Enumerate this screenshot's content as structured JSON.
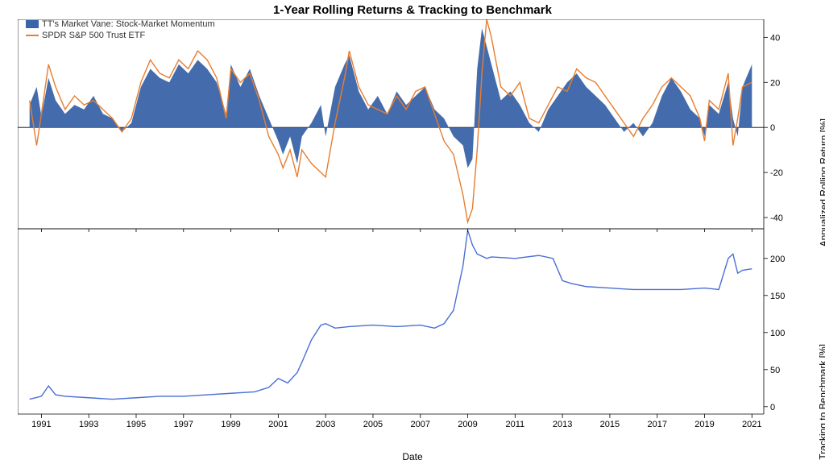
{
  "title": "1-Year Rolling Returns & Tracking to Benchmark",
  "xlabel": "Date",
  "ylabel_top": "Annualized Rolling Return [%]",
  "ylabel_bottom": "Tracking to Benchmark [%]",
  "legend": {
    "area_label": "TT's Market Vane: Stock-Market Momentum",
    "line_label": "SPDR S&P 500 Trust ETF"
  },
  "x_axis": {
    "min": 1990,
    "max": 2021.5,
    "ticks": [
      1991,
      1993,
      1995,
      1997,
      1999,
      2001,
      2003,
      2005,
      2007,
      2009,
      2011,
      2013,
      2015,
      2017,
      2019,
      2021
    ]
  },
  "top_panel": {
    "ylim": [
      -45,
      48
    ],
    "yticks": [
      -40,
      -20,
      0,
      20,
      40
    ],
    "zero_line_color": "#000000",
    "area_color": "#3a64a8",
    "line_color": "#e87d2e",
    "area_data": [
      [
        1990.5,
        10
      ],
      [
        1990.8,
        18
      ],
      [
        1991.0,
        5
      ],
      [
        1991.3,
        22
      ],
      [
        1991.6,
        12
      ],
      [
        1992.0,
        6
      ],
      [
        1992.4,
        10
      ],
      [
        1992.8,
        8
      ],
      [
        1993.2,
        14
      ],
      [
        1993.6,
        6
      ],
      [
        1994.0,
        4
      ],
      [
        1994.4,
        -2
      ],
      [
        1994.8,
        2
      ],
      [
        1995.2,
        18
      ],
      [
        1995.6,
        26
      ],
      [
        1996.0,
        22
      ],
      [
        1996.4,
        20
      ],
      [
        1996.8,
        28
      ],
      [
        1997.2,
        24
      ],
      [
        1997.6,
        30
      ],
      [
        1998.0,
        26
      ],
      [
        1998.4,
        20
      ],
      [
        1998.8,
        6
      ],
      [
        1999.0,
        28
      ],
      [
        1999.4,
        18
      ],
      [
        1999.8,
        26
      ],
      [
        2000.2,
        14
      ],
      [
        2000.6,
        4
      ],
      [
        2001.0,
        -6
      ],
      [
        2001.2,
        -12
      ],
      [
        2001.5,
        -4
      ],
      [
        2001.8,
        -16
      ],
      [
        2002.0,
        -4
      ],
      [
        2002.4,
        2
      ],
      [
        2002.8,
        10
      ],
      [
        2003.0,
        -4
      ],
      [
        2003.4,
        18
      ],
      [
        2003.8,
        28
      ],
      [
        2004.0,
        32
      ],
      [
        2004.4,
        16
      ],
      [
        2004.8,
        8
      ],
      [
        2005.2,
        14
      ],
      [
        2005.6,
        6
      ],
      [
        2006.0,
        16
      ],
      [
        2006.4,
        10
      ],
      [
        2006.8,
        14
      ],
      [
        2007.2,
        18
      ],
      [
        2007.6,
        8
      ],
      [
        2008.0,
        4
      ],
      [
        2008.4,
        -4
      ],
      [
        2008.8,
        -8
      ],
      [
        2009.0,
        -18
      ],
      [
        2009.2,
        -14
      ],
      [
        2009.4,
        26
      ],
      [
        2009.6,
        44
      ],
      [
        2009.8,
        36
      ],
      [
        2010.0,
        28
      ],
      [
        2010.4,
        12
      ],
      [
        2010.8,
        16
      ],
      [
        2011.2,
        10
      ],
      [
        2011.6,
        2
      ],
      [
        2012.0,
        -2
      ],
      [
        2012.4,
        8
      ],
      [
        2012.8,
        14
      ],
      [
        2013.2,
        20
      ],
      [
        2013.6,
        24
      ],
      [
        2014.0,
        18
      ],
      [
        2014.4,
        14
      ],
      [
        2014.8,
        10
      ],
      [
        2015.2,
        4
      ],
      [
        2015.6,
        -2
      ],
      [
        2016.0,
        2
      ],
      [
        2016.4,
        -4
      ],
      [
        2016.8,
        2
      ],
      [
        2017.2,
        14
      ],
      [
        2017.6,
        22
      ],
      [
        2018.0,
        16
      ],
      [
        2018.4,
        8
      ],
      [
        2018.8,
        4
      ],
      [
        2019.0,
        -4
      ],
      [
        2019.2,
        10
      ],
      [
        2019.6,
        6
      ],
      [
        2020.0,
        20
      ],
      [
        2020.2,
        4
      ],
      [
        2020.4,
        -4
      ],
      [
        2020.6,
        18
      ],
      [
        2021.0,
        28
      ]
    ],
    "line_data": [
      [
        1990.5,
        12
      ],
      [
        1990.8,
        -8
      ],
      [
        1991.0,
        6
      ],
      [
        1991.3,
        28
      ],
      [
        1991.6,
        18
      ],
      [
        1992.0,
        8
      ],
      [
        1992.4,
        14
      ],
      [
        1992.8,
        10
      ],
      [
        1993.2,
        12
      ],
      [
        1993.6,
        8
      ],
      [
        1994.0,
        4
      ],
      [
        1994.4,
        -2
      ],
      [
        1994.8,
        4
      ],
      [
        1995.2,
        20
      ],
      [
        1995.6,
        30
      ],
      [
        1996.0,
        24
      ],
      [
        1996.4,
        22
      ],
      [
        1996.8,
        30
      ],
      [
        1997.2,
        26
      ],
      [
        1997.6,
        34
      ],
      [
        1998.0,
        30
      ],
      [
        1998.4,
        22
      ],
      [
        1998.8,
        4
      ],
      [
        1999.0,
        26
      ],
      [
        1999.4,
        20
      ],
      [
        1999.8,
        24
      ],
      [
        2000.2,
        12
      ],
      [
        2000.6,
        -4
      ],
      [
        2001.0,
        -12
      ],
      [
        2001.2,
        -18
      ],
      [
        2001.5,
        -10
      ],
      [
        2001.8,
        -22
      ],
      [
        2002.0,
        -10
      ],
      [
        2002.4,
        -16
      ],
      [
        2002.8,
        -20
      ],
      [
        2003.0,
        -22
      ],
      [
        2003.4,
        2
      ],
      [
        2003.8,
        22
      ],
      [
        2004.0,
        34
      ],
      [
        2004.4,
        18
      ],
      [
        2004.8,
        10
      ],
      [
        2005.2,
        8
      ],
      [
        2005.6,
        6
      ],
      [
        2006.0,
        14
      ],
      [
        2006.4,
        8
      ],
      [
        2006.8,
        16
      ],
      [
        2007.2,
        18
      ],
      [
        2007.6,
        6
      ],
      [
        2008.0,
        -6
      ],
      [
        2008.4,
        -12
      ],
      [
        2008.8,
        -30
      ],
      [
        2009.0,
        -42
      ],
      [
        2009.2,
        -36
      ],
      [
        2009.4,
        -10
      ],
      [
        2009.6,
        24
      ],
      [
        2009.8,
        48
      ],
      [
        2010.0,
        40
      ],
      [
        2010.4,
        18
      ],
      [
        2010.8,
        14
      ],
      [
        2011.2,
        20
      ],
      [
        2011.6,
        4
      ],
      [
        2012.0,
        2
      ],
      [
        2012.4,
        10
      ],
      [
        2012.8,
        18
      ],
      [
        2013.2,
        16
      ],
      [
        2013.6,
        26
      ],
      [
        2014.0,
        22
      ],
      [
        2014.4,
        20
      ],
      [
        2014.8,
        14
      ],
      [
        2015.2,
        8
      ],
      [
        2015.6,
        2
      ],
      [
        2016.0,
        -4
      ],
      [
        2016.4,
        4
      ],
      [
        2016.8,
        10
      ],
      [
        2017.2,
        18
      ],
      [
        2017.6,
        22
      ],
      [
        2018.0,
        18
      ],
      [
        2018.4,
        14
      ],
      [
        2018.8,
        4
      ],
      [
        2019.0,
        -6
      ],
      [
        2019.2,
        12
      ],
      [
        2019.6,
        8
      ],
      [
        2020.0,
        24
      ],
      [
        2020.2,
        -8
      ],
      [
        2020.4,
        4
      ],
      [
        2020.6,
        18
      ],
      [
        2021.0,
        20
      ]
    ]
  },
  "bottom_panel": {
    "ylim": [
      -10,
      240
    ],
    "yticks": [
      0,
      50,
      100,
      150,
      200
    ],
    "line_color": "#4a6fd4",
    "data": [
      [
        1990.5,
        10
      ],
      [
        1991.0,
        14
      ],
      [
        1991.3,
        28
      ],
      [
        1991.6,
        16
      ],
      [
        1992.0,
        14
      ],
      [
        1993.0,
        12
      ],
      [
        1994.0,
        10
      ],
      [
        1995.0,
        12
      ],
      [
        1996.0,
        14
      ],
      [
        1997.0,
        14
      ],
      [
        1998.0,
        16
      ],
      [
        1999.0,
        18
      ],
      [
        2000.0,
        20
      ],
      [
        2000.6,
        26
      ],
      [
        2001.0,
        38
      ],
      [
        2001.4,
        32
      ],
      [
        2001.8,
        46
      ],
      [
        2002.0,
        60
      ],
      [
        2002.4,
        90
      ],
      [
        2002.8,
        110
      ],
      [
        2003.0,
        112
      ],
      [
        2003.4,
        106
      ],
      [
        2004.0,
        108
      ],
      [
        2005.0,
        110
      ],
      [
        2006.0,
        108
      ],
      [
        2007.0,
        110
      ],
      [
        2007.6,
        106
      ],
      [
        2008.0,
        112
      ],
      [
        2008.4,
        130
      ],
      [
        2008.8,
        190
      ],
      [
        2009.0,
        238
      ],
      [
        2009.2,
        218
      ],
      [
        2009.4,
        206
      ],
      [
        2009.8,
        200
      ],
      [
        2010.0,
        202
      ],
      [
        2011.0,
        200
      ],
      [
        2012.0,
        204
      ],
      [
        2012.6,
        200
      ],
      [
        2013.0,
        170
      ],
      [
        2013.4,
        166
      ],
      [
        2014.0,
        162
      ],
      [
        2015.0,
        160
      ],
      [
        2016.0,
        158
      ],
      [
        2017.0,
        158
      ],
      [
        2018.0,
        158
      ],
      [
        2019.0,
        160
      ],
      [
        2019.6,
        158
      ],
      [
        2020.0,
        200
      ],
      [
        2020.2,
        206
      ],
      [
        2020.4,
        180
      ],
      [
        2020.6,
        184
      ],
      [
        2021.0,
        186
      ]
    ]
  },
  "colors": {
    "background": "#ffffff",
    "axis": "#000000",
    "text": "#000000"
  },
  "font_sizes": {
    "title": 15,
    "axis_label": 12,
    "tick": 11,
    "legend": 11
  }
}
